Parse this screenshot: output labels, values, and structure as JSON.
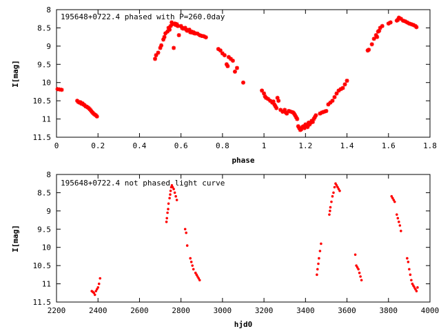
{
  "chart_data": [
    {
      "type": "scatter",
      "title": "195648+0722.4 phased with P=260.0day",
      "xlabel": "phase",
      "ylabel": "I[mag]",
      "xlim": [
        0,
        1.8
      ],
      "ylim": [
        8,
        11.5
      ],
      "y_inverted": true,
      "marker": "star",
      "color": "#ff0000",
      "xticks": [
        "0",
        "0.2",
        "0.4",
        "0.6",
        "0.8",
        "1",
        "1.2",
        "1.4",
        "1.6",
        "1.8"
      ],
      "yticks": [
        "8",
        "8.5",
        "9",
        "9.5",
        "10",
        "10.5",
        "11",
        "11.5"
      ],
      "xtick_values": [
        0,
        0.2,
        0.4,
        0.6,
        0.8,
        1.0,
        1.2,
        1.4,
        1.6,
        1.8
      ],
      "ytick_values": [
        8,
        8.5,
        9,
        9.5,
        10,
        10.5,
        11,
        11.5
      ],
      "points": [
        [
          0.005,
          10.18
        ],
        [
          0.015,
          10.19
        ],
        [
          0.025,
          10.2
        ],
        [
          0.1,
          10.5
        ],
        [
          0.105,
          10.53
        ],
        [
          0.11,
          10.55
        ],
        [
          0.115,
          10.54
        ],
        [
          0.12,
          10.58
        ],
        [
          0.125,
          10.57
        ],
        [
          0.13,
          10.6
        ],
        [
          0.135,
          10.62
        ],
        [
          0.14,
          10.65
        ],
        [
          0.145,
          10.66
        ],
        [
          0.15,
          10.68
        ],
        [
          0.155,
          10.7
        ],
        [
          0.16,
          10.73
        ],
        [
          0.165,
          10.76
        ],
        [
          0.17,
          10.8
        ],
        [
          0.175,
          10.83
        ],
        [
          0.18,
          10.86
        ],
        [
          0.185,
          10.88
        ],
        [
          0.19,
          10.9
        ],
        [
          0.195,
          10.93
        ],
        [
          0.475,
          9.35
        ],
        [
          0.48,
          9.25
        ],
        [
          0.49,
          9.18
        ],
        [
          0.5,
          9.05
        ],
        [
          0.505,
          8.98
        ],
        [
          0.515,
          8.82
        ],
        [
          0.52,
          8.75
        ],
        [
          0.525,
          8.65
        ],
        [
          0.535,
          8.6
        ],
        [
          0.54,
          8.5
        ],
        [
          0.545,
          8.55
        ],
        [
          0.55,
          8.45
        ],
        [
          0.555,
          8.35
        ],
        [
          0.56,
          8.4
        ],
        [
          0.565,
          9.05
        ],
        [
          0.57,
          8.38
        ],
        [
          0.575,
          8.42
        ],
        [
          0.58,
          8.4
        ],
        [
          0.585,
          8.45
        ],
        [
          0.59,
          8.7
        ],
        [
          0.6,
          8.45
        ],
        [
          0.605,
          8.5
        ],
        [
          0.61,
          8.52
        ],
        [
          0.62,
          8.5
        ],
        [
          0.625,
          8.55
        ],
        [
          0.63,
          8.58
        ],
        [
          0.64,
          8.55
        ],
        [
          0.645,
          8.62
        ],
        [
          0.65,
          8.6
        ],
        [
          0.655,
          8.63
        ],
        [
          0.66,
          8.62
        ],
        [
          0.665,
          8.65
        ],
        [
          0.67,
          8.65
        ],
        [
          0.68,
          8.66
        ],
        [
          0.69,
          8.7
        ],
        [
          0.7,
          8.72
        ],
        [
          0.71,
          8.73
        ],
        [
          0.72,
          8.76
        ],
        [
          0.78,
          9.08
        ],
        [
          0.79,
          9.12
        ],
        [
          0.8,
          9.2
        ],
        [
          0.81,
          9.25
        ],
        [
          0.82,
          9.5
        ],
        [
          0.825,
          9.55
        ],
        [
          0.83,
          9.3
        ],
        [
          0.84,
          9.35
        ],
        [
          0.85,
          9.4
        ],
        [
          0.86,
          9.7
        ],
        [
          0.87,
          9.6
        ],
        [
          0.9,
          10.0
        ],
        [
          0.99,
          10.22
        ],
        [
          1.0,
          10.3
        ],
        [
          1.005,
          10.38
        ],
        [
          1.01,
          10.42
        ],
        [
          1.02,
          10.45
        ],
        [
          1.03,
          10.5
        ],
        [
          1.04,
          10.55
        ],
        [
          1.045,
          10.52
        ],
        [
          1.05,
          10.6
        ],
        [
          1.055,
          10.65
        ],
        [
          1.06,
          10.7
        ],
        [
          1.065,
          10.42
        ],
        [
          1.07,
          10.5
        ],
        [
          1.08,
          10.75
        ],
        [
          1.09,
          10.8
        ],
        [
          1.1,
          10.75
        ],
        [
          1.105,
          10.82
        ],
        [
          1.11,
          10.85
        ],
        [
          1.12,
          10.78
        ],
        [
          1.13,
          10.8
        ],
        [
          1.14,
          10.82
        ],
        [
          1.145,
          10.85
        ],
        [
          1.15,
          10.9
        ],
        [
          1.155,
          10.95
        ],
        [
          1.16,
          11.0
        ],
        [
          1.165,
          11.2
        ],
        [
          1.17,
          11.25
        ],
        [
          1.175,
          11.3
        ],
        [
          1.18,
          11.28
        ],
        [
          1.185,
          11.22
        ],
        [
          1.19,
          11.2
        ],
        [
          1.195,
          11.25
        ],
        [
          1.2,
          11.15
        ],
        [
          1.205,
          11.18
        ],
        [
          1.21,
          11.22
        ],
        [
          1.215,
          11.1
        ],
        [
          1.22,
          11.15
        ],
        [
          1.225,
          11.1
        ],
        [
          1.23,
          11.05
        ],
        [
          1.235,
          11.08
        ],
        [
          1.24,
          11.0
        ],
        [
          1.245,
          10.95
        ],
        [
          1.25,
          10.9
        ],
        [
          1.27,
          10.85
        ],
        [
          1.28,
          10.82
        ],
        [
          1.29,
          10.8
        ],
        [
          1.3,
          10.78
        ],
        [
          1.31,
          10.6
        ],
        [
          1.32,
          10.55
        ],
        [
          1.33,
          10.5
        ],
        [
          1.34,
          10.4
        ],
        [
          1.35,
          10.3
        ],
        [
          1.36,
          10.22
        ],
        [
          1.37,
          10.18
        ],
        [
          1.38,
          10.15
        ],
        [
          1.39,
          10.05
        ],
        [
          1.4,
          9.95
        ],
        [
          1.5,
          9.12
        ],
        [
          1.505,
          9.1
        ],
        [
          1.52,
          8.95
        ],
        [
          1.53,
          8.8
        ],
        [
          1.54,
          8.7
        ],
        [
          1.545,
          8.75
        ],
        [
          1.55,
          8.6
        ],
        [
          1.555,
          8.58
        ],
        [
          1.56,
          8.5
        ],
        [
          1.57,
          8.45
        ],
        [
          1.6,
          8.38
        ],
        [
          1.61,
          8.35
        ],
        [
          1.64,
          8.3
        ],
        [
          1.645,
          8.28
        ],
        [
          1.65,
          8.22
        ],
        [
          1.66,
          8.25
        ],
        [
          1.67,
          8.3
        ],
        [
          1.68,
          8.32
        ],
        [
          1.69,
          8.35
        ],
        [
          1.7,
          8.38
        ],
        [
          1.71,
          8.4
        ],
        [
          1.72,
          8.42
        ],
        [
          1.73,
          8.45
        ],
        [
          1.735,
          8.48
        ]
      ]
    },
    {
      "type": "scatter",
      "title": "195648+0722.4 not phased light curve",
      "xlabel": "hjd0",
      "ylabel": "I[mag]",
      "xlim": [
        2200,
        4000
      ],
      "ylim": [
        8,
        11.5
      ],
      "y_inverted": true,
      "marker": "dot",
      "color": "#ff0000",
      "xticks": [
        "2200",
        "2400",
        "2600",
        "2800",
        "3000",
        "3200",
        "3400",
        "3600",
        "3800",
        "4000"
      ],
      "yticks": [
        "8",
        "8.5",
        "9",
        "9.5",
        "10",
        "10.5",
        "11",
        "11.5"
      ],
      "xtick_values": [
        2200,
        2400,
        2600,
        2800,
        3000,
        3200,
        3400,
        3600,
        3800,
        4000
      ],
      "ytick_values": [
        8,
        8.5,
        9,
        9.5,
        10,
        10.5,
        11,
        11.5
      ],
      "points": [
        [
          2370,
          11.2
        ],
        [
          2375,
          11.22
        ],
        [
          2380,
          11.25
        ],
        [
          2385,
          11.3
        ],
        [
          2390,
          11.2
        ],
        [
          2395,
          11.15
        ],
        [
          2400,
          11.1
        ],
        [
          2405,
          11.0
        ],
        [
          2410,
          10.85
        ],
        [
          2730,
          9.3
        ],
        [
          2732,
          9.2
        ],
        [
          2735,
          9.05
        ],
        [
          2738,
          8.95
        ],
        [
          2740,
          8.8
        ],
        [
          2745,
          8.65
        ],
        [
          2748,
          8.55
        ],
        [
          2750,
          8.45
        ],
        [
          2753,
          8.35
        ],
        [
          2756,
          8.3
        ],
        [
          2760,
          8.35
        ],
        [
          2765,
          8.4
        ],
        [
          2770,
          8.5
        ],
        [
          2775,
          8.6
        ],
        [
          2780,
          8.7
        ],
        [
          2820,
          9.5
        ],
        [
          2825,
          9.6
        ],
        [
          2830,
          9.95
        ],
        [
          2845,
          10.3
        ],
        [
          2850,
          10.4
        ],
        [
          2855,
          10.5
        ],
        [
          2860,
          10.6
        ],
        [
          2870,
          10.7
        ],
        [
          2875,
          10.75
        ],
        [
          2880,
          10.8
        ],
        [
          2885,
          10.85
        ],
        [
          2890,
          10.9
        ],
        [
          3455,
          10.75
        ],
        [
          3458,
          10.6
        ],
        [
          3462,
          10.45
        ],
        [
          3465,
          10.3
        ],
        [
          3470,
          10.1
        ],
        [
          3475,
          9.9
        ],
        [
          3515,
          9.1
        ],
        [
          3518,
          9.0
        ],
        [
          3520,
          8.9
        ],
        [
          3525,
          8.75
        ],
        [
          3530,
          8.6
        ],
        [
          3535,
          8.5
        ],
        [
          3540,
          8.35
        ],
        [
          3545,
          8.25
        ],
        [
          3550,
          8.3
        ],
        [
          3555,
          8.35
        ],
        [
          3560,
          8.4
        ],
        [
          3565,
          8.45
        ],
        [
          3640,
          10.2
        ],
        [
          3645,
          10.5
        ],
        [
          3650,
          10.55
        ],
        [
          3655,
          10.6
        ],
        [
          3660,
          10.7
        ],
        [
          3665,
          10.8
        ],
        [
          3670,
          10.9
        ],
        [
          3815,
          8.6
        ],
        [
          3820,
          8.65
        ],
        [
          3825,
          8.7
        ],
        [
          3830,
          8.75
        ],
        [
          3840,
          9.1
        ],
        [
          3845,
          9.2
        ],
        [
          3850,
          9.3
        ],
        [
          3855,
          9.4
        ],
        [
          3860,
          9.55
        ],
        [
          3890,
          10.3
        ],
        [
          3895,
          10.4
        ],
        [
          3900,
          10.6
        ],
        [
          3905,
          10.75
        ],
        [
          3910,
          10.9
        ],
        [
          3915,
          11.0
        ],
        [
          3920,
          11.05
        ],
        [
          3925,
          11.1
        ],
        [
          3930,
          11.15
        ],
        [
          3935,
          11.2
        ],
        [
          3940,
          11.1
        ]
      ]
    }
  ]
}
